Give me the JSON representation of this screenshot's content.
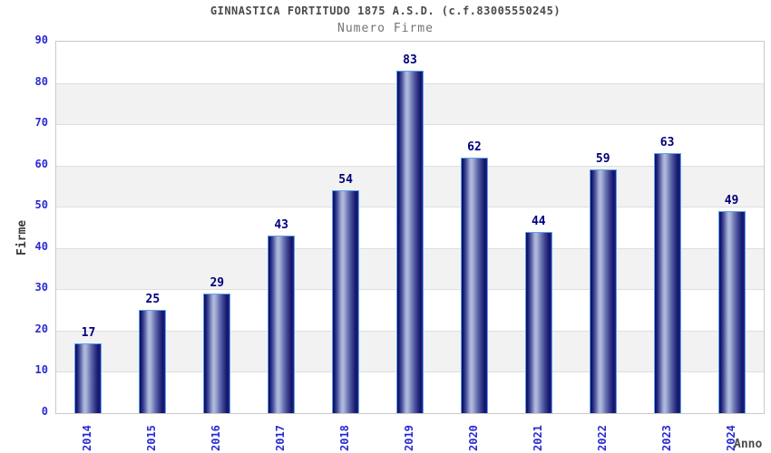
{
  "chart_data": {
    "type": "bar",
    "title": "GINNASTICA FORTITUDO 1875 A.S.D. (c.f.83005550245)",
    "subtitle": "Numero Firme",
    "xlabel": "Anno",
    "ylabel": "Firme",
    "categories": [
      "2014",
      "2015",
      "2016",
      "2017",
      "2018",
      "2019",
      "2020",
      "2021",
      "2022",
      "2023",
      "2024"
    ],
    "values": [
      17,
      25,
      29,
      43,
      54,
      83,
      62,
      44,
      59,
      63,
      49
    ],
    "ylim": [
      0,
      90
    ],
    "yticks": [
      0,
      10,
      20,
      30,
      40,
      50,
      60,
      70,
      80,
      90
    ],
    "grid": "horizontal-bands",
    "legend_position": "none",
    "colors": {
      "bar_dark": "#0a0a5f",
      "bar_highlight": "#b4bcdc",
      "bar_border": "#5ea2ec",
      "axis_tick_label": "#2a2ad2",
      "value_label": "#00007d",
      "title": "#4a4a4a",
      "subtitle": "#737373",
      "band_stripe": "#f2f2f2",
      "gridline": "#dedede",
      "plot_border": "#c9c9c9"
    }
  }
}
